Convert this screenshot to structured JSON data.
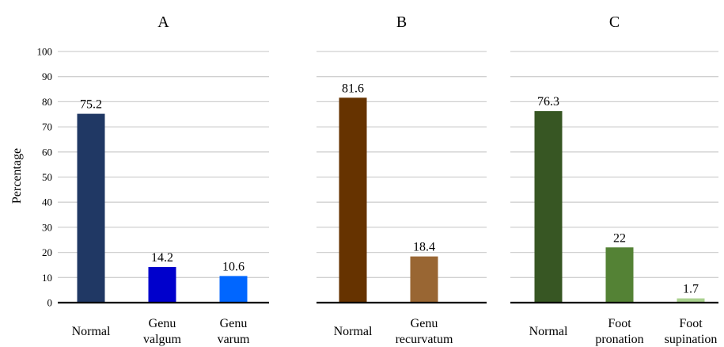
{
  "chart_data": {
    "type": "bar",
    "ylabel": "Percentage",
    "ylim": [
      0,
      100
    ],
    "yticks": [
      "0",
      "10",
      "20",
      "30",
      "40",
      "50",
      "60",
      "70",
      "80",
      "90",
      "100"
    ],
    "grid": true,
    "panels": [
      {
        "title": "A",
        "categories": [
          [
            "Normal"
          ],
          [
            "Genu",
            "valgum"
          ],
          [
            "Genu",
            "varum"
          ]
        ],
        "values": [
          75.2,
          14.2,
          10.6
        ],
        "labels": [
          "75.2",
          "14.2",
          "10.6"
        ],
        "colors": [
          "#203864",
          "#0000CC",
          "#0066FF"
        ]
      },
      {
        "title": "B",
        "categories": [
          [
            "Normal"
          ],
          [
            "Genu",
            "recurvatum"
          ]
        ],
        "values": [
          81.6,
          18.4
        ],
        "labels": [
          "81.6",
          "18.4"
        ],
        "colors": [
          "#663300",
          "#996633"
        ]
      },
      {
        "title": "C",
        "categories": [
          [
            "Normal"
          ],
          [
            "Foot",
            "pronation"
          ],
          [
            "Foot",
            "supination"
          ]
        ],
        "values": [
          76.3,
          22,
          1.7
        ],
        "labels": [
          "76.3",
          "22",
          "1.7"
        ],
        "colors": [
          "#375623",
          "#548235",
          "#A9D18E"
        ]
      }
    ]
  }
}
